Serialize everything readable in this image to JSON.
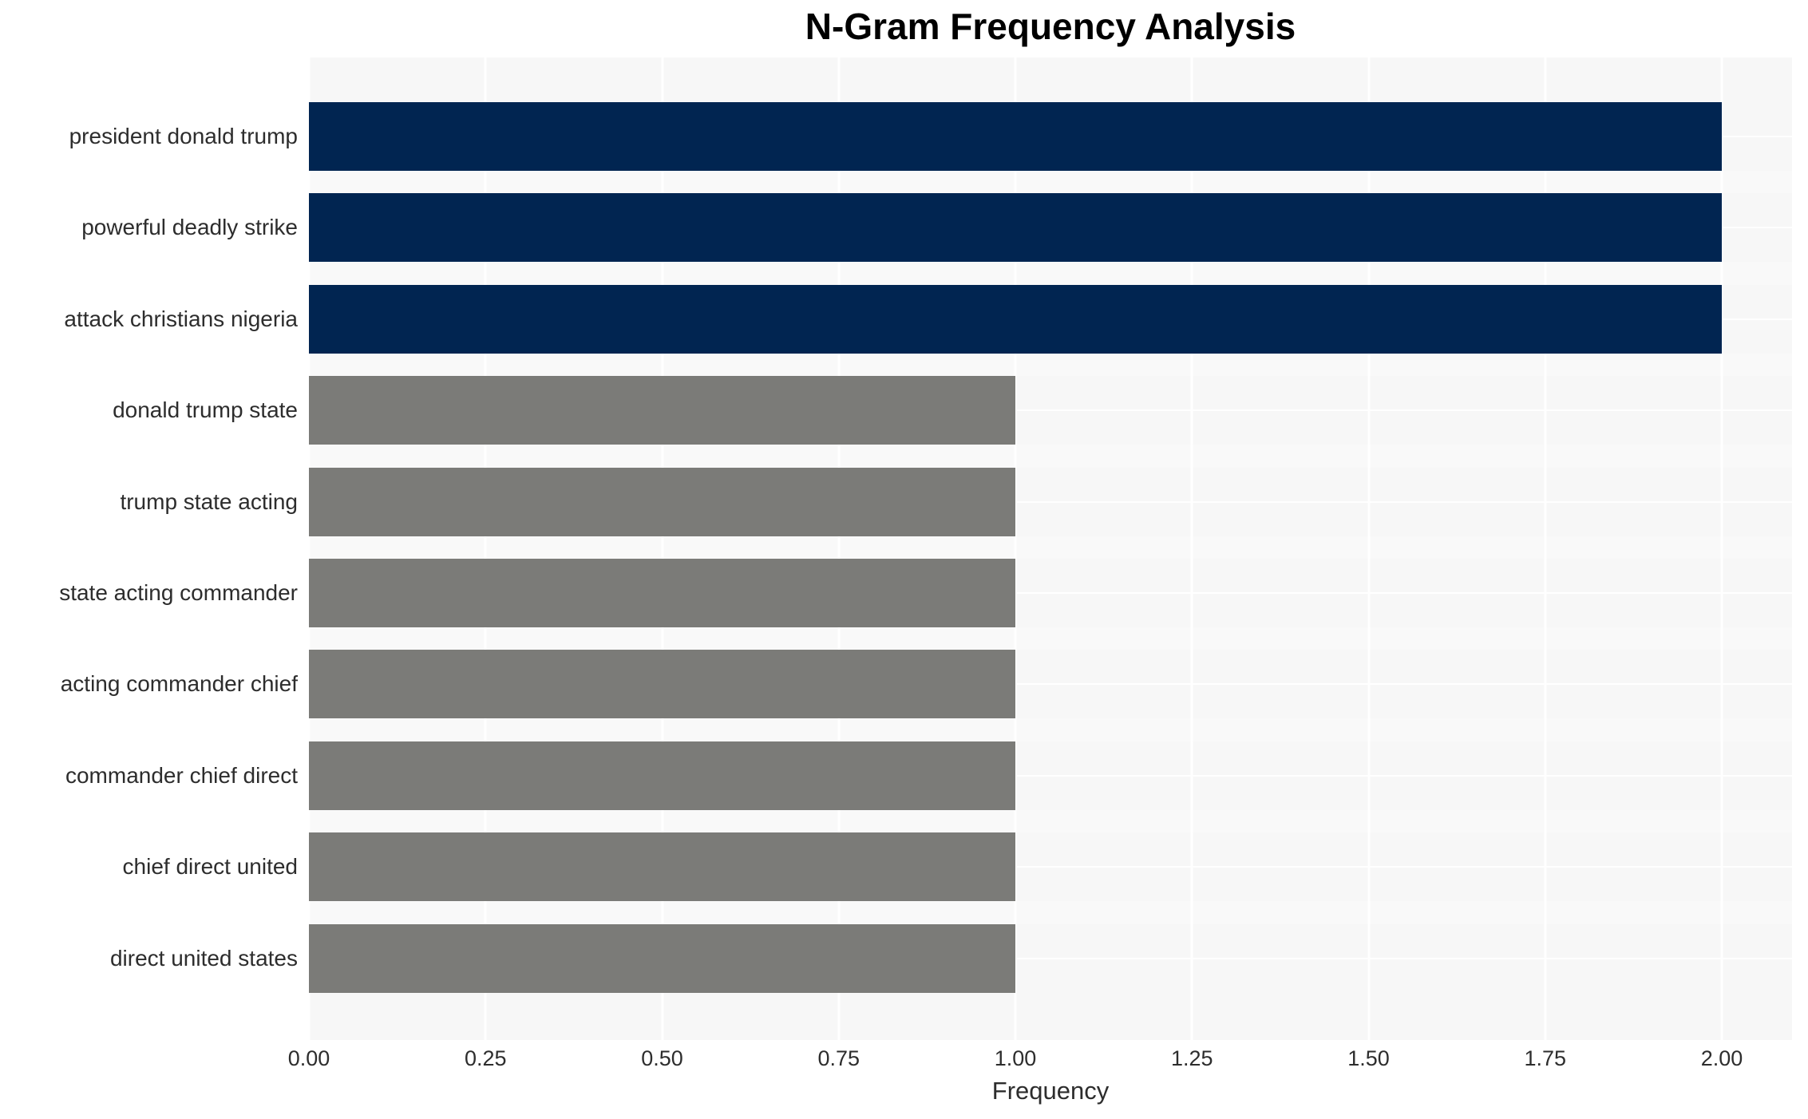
{
  "chart_data": {
    "type": "bar",
    "orientation": "horizontal",
    "title": "N-Gram Frequency Analysis",
    "xlabel": "Frequency",
    "ylabel": "",
    "categories": [
      "president donald trump",
      "powerful deadly strike",
      "attack christians nigeria",
      "donald trump state",
      "trump state acting",
      "state acting commander",
      "acting commander chief",
      "commander chief direct",
      "chief direct united",
      "direct united states"
    ],
    "values": [
      2,
      2,
      2,
      1,
      1,
      1,
      1,
      1,
      1,
      1
    ],
    "bar_colors": [
      "#012551",
      "#012551",
      "#012551",
      "#7b7b78",
      "#7b7b78",
      "#7b7b78",
      "#7b7b78",
      "#7b7b78",
      "#7b7b78",
      "#7b7b78"
    ],
    "xlim": [
      0,
      2.1
    ],
    "xticks": [
      0.0,
      0.25,
      0.5,
      0.75,
      1.0,
      1.25,
      1.5,
      1.75,
      2.0
    ],
    "xtick_labels": [
      "0.00",
      "0.25",
      "0.50",
      "0.75",
      "1.00",
      "1.25",
      "1.50",
      "1.75",
      "2.00"
    ],
    "grid": "vertical and horizontal white gridlines on light gray plot background",
    "legend": "none"
  },
  "colors": {
    "bar_highlight": "#012551",
    "bar_default": "#7b7b78",
    "figure_background": "#ffffff",
    "plot_background": "#f7f7f7",
    "row_gap_stripe": "#f9f9f9",
    "gridline": "#ffffff",
    "title_text": "#000000",
    "axis_text": "#2d2d2d"
  }
}
